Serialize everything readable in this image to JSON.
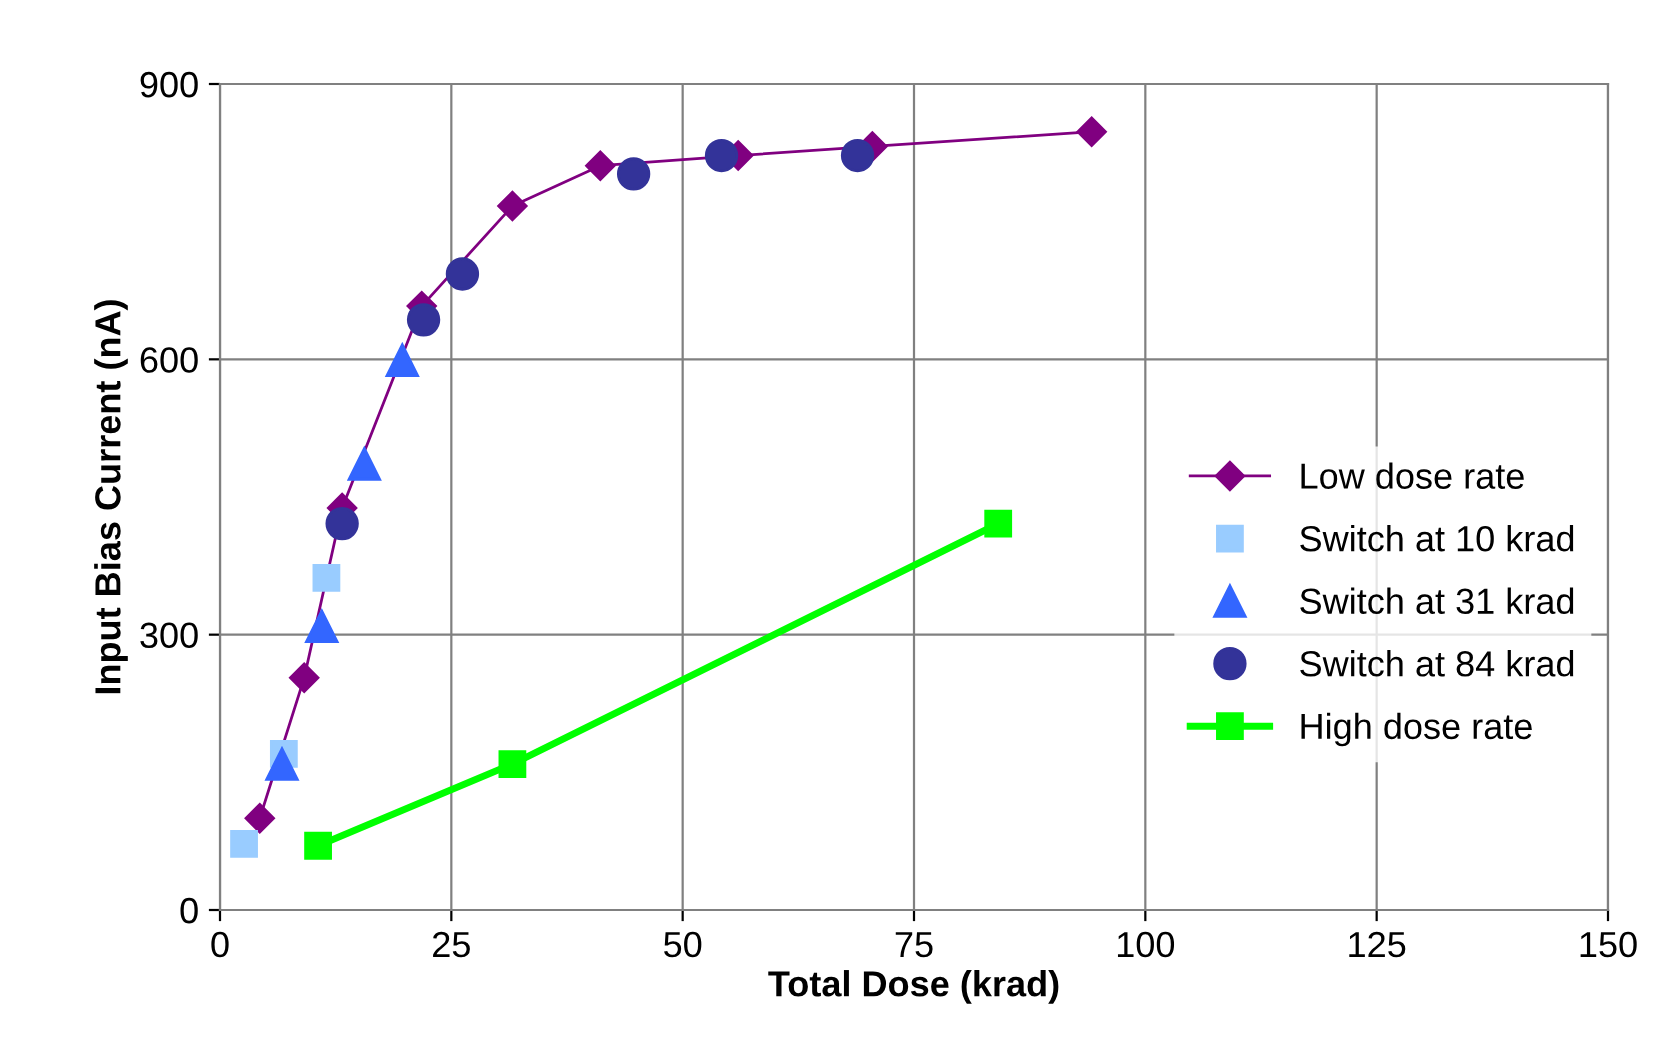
{
  "chart_data": {
    "type": "scatter",
    "xlabel": "Total Dose (krad)",
    "ylabel": "Input Bias Current (nA)",
    "xlim": [
      0,
      150
    ],
    "xticks": [
      0,
      25,
      50,
      75,
      100,
      125,
      150
    ],
    "ylim": [
      0,
      900
    ],
    "yticks": [
      0,
      300,
      600,
      900
    ],
    "grid": true,
    "legend": "right",
    "series": [
      {
        "name": "Low dose rate",
        "type": "line",
        "marker": "diamond",
        "color": "#800080",
        "x": [
          4.3,
          9.1,
          13.2,
          21.8,
          31.6,
          41.1,
          56,
          70.5,
          94.2
        ],
        "values": [
          100,
          253,
          438,
          658,
          767,
          811,
          822,
          832,
          848
        ]
      },
      {
        "name": "Switch at 10 krad",
        "marker": "square",
        "color": "#99ccff",
        "x": [
          2.6,
          6.9,
          11.5
        ],
        "values": [
          72,
          170,
          362
        ]
      },
      {
        "name": "Switch at 31 krad",
        "marker": "triangle",
        "color": "#3366ff",
        "x": [
          6.7,
          11,
          15.6,
          19.7
        ],
        "values": [
          159,
          309,
          486,
          599
        ]
      },
      {
        "name": "Switch at 84 krad",
        "marker": "circle",
        "color": "#333399",
        "x": [
          13.2,
          22,
          26.2,
          44.7,
          54.2,
          68.9
        ],
        "values": [
          421,
          643,
          693,
          802,
          822,
          822
        ]
      },
      {
        "name": "High dose rate",
        "type": "line",
        "marker": "square",
        "color": "#00ff00",
        "x": [
          10.6,
          31.6,
          84.1
        ],
        "values": [
          70,
          159,
          421
        ]
      }
    ]
  }
}
